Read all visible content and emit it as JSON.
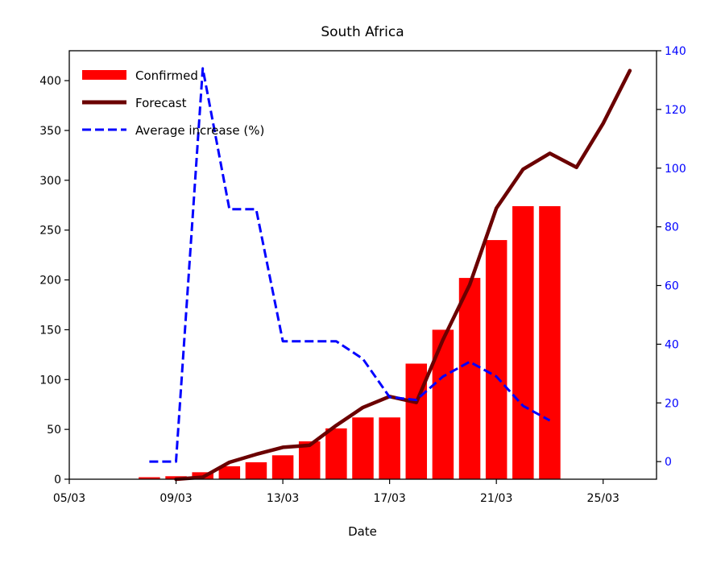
{
  "chart_data": {
    "type": "bar",
    "title": "South Africa",
    "xlabel": "Date",
    "ylabel": "",
    "y2label": "",
    "ylim": [
      0,
      430
    ],
    "y2lim": [
      -6,
      140
    ],
    "x_day_range": [
      5,
      27
    ],
    "x_ticks": [
      {
        "day": 5,
        "label": "05/03"
      },
      {
        "day": 9,
        "label": "09/03"
      },
      {
        "day": 13,
        "label": "13/03"
      },
      {
        "day": 17,
        "label": "17/03"
      },
      {
        "day": 21,
        "label": "21/03"
      },
      {
        "day": 25,
        "label": "25/03"
      }
    ],
    "y_ticks": [
      0,
      50,
      100,
      150,
      200,
      250,
      300,
      350,
      400
    ],
    "y2_ticks": [
      0,
      20,
      40,
      60,
      80,
      100,
      120,
      140
    ],
    "legend": {
      "position": "upper-left",
      "entries": [
        {
          "key": "confirmed",
          "label": "Confirmed"
        },
        {
          "key": "forecast",
          "label": "Forecast"
        },
        {
          "key": "increase",
          "label": "Average increase (%)"
        }
      ]
    },
    "series": [
      {
        "name": "Confirmed",
        "kind": "bar",
        "axis": "left",
        "color": "#ff0000",
        "points": [
          {
            "day": 8,
            "value": 2
          },
          {
            "day": 9,
            "value": 3
          },
          {
            "day": 10,
            "value": 7
          },
          {
            "day": 11,
            "value": 13
          },
          {
            "day": 12,
            "value": 17
          },
          {
            "day": 13,
            "value": 24
          },
          {
            "day": 14,
            "value": 38
          },
          {
            "day": 15,
            "value": 51
          },
          {
            "day": 16,
            "value": 62
          },
          {
            "day": 17,
            "value": 62
          },
          {
            "day": 18,
            "value": 116
          },
          {
            "day": 19,
            "value": 150
          },
          {
            "day": 20,
            "value": 202
          },
          {
            "day": 21,
            "value": 240
          },
          {
            "day": 22,
            "value": 274
          },
          {
            "day": 23,
            "value": 274
          }
        ]
      },
      {
        "name": "Forecast",
        "kind": "line",
        "axis": "left",
        "color": "#6b0000",
        "points": [
          {
            "day": 9,
            "value": 0
          },
          {
            "day": 10,
            "value": 2
          },
          {
            "day": 11,
            "value": 17
          },
          {
            "day": 12,
            "value": 25
          },
          {
            "day": 13,
            "value": 32
          },
          {
            "day": 14,
            "value": 34
          },
          {
            "day": 15,
            "value": 54
          },
          {
            "day": 16,
            "value": 72
          },
          {
            "day": 17,
            "value": 83
          },
          {
            "day": 18,
            "value": 77
          },
          {
            "day": 19,
            "value": 140
          },
          {
            "day": 20,
            "value": 195
          },
          {
            "day": 21,
            "value": 272
          },
          {
            "day": 22,
            "value": 311
          },
          {
            "day": 23,
            "value": 327
          },
          {
            "day": 24,
            "value": 313
          },
          {
            "day": 25,
            "value": 357
          },
          {
            "day": 26,
            "value": 410
          }
        ]
      },
      {
        "name": "Average increase (%)",
        "kind": "line",
        "axis": "right",
        "color": "#0000ff",
        "dashed": true,
        "points": [
          {
            "day": 8,
            "value": 0
          },
          {
            "day": 9,
            "value": 0
          },
          {
            "day": 10,
            "value": 134
          },
          {
            "day": 11,
            "value": 86
          },
          {
            "day": 12,
            "value": 86
          },
          {
            "day": 13,
            "value": 41
          },
          {
            "day": 14,
            "value": 41
          },
          {
            "day": 15,
            "value": 41
          },
          {
            "day": 16,
            "value": 35
          },
          {
            "day": 17,
            "value": 22
          },
          {
            "day": 18,
            "value": 21
          },
          {
            "day": 19,
            "value": 29
          },
          {
            "day": 20,
            "value": 34
          },
          {
            "day": 21,
            "value": 29
          },
          {
            "day": 22,
            "value": 19
          },
          {
            "day": 23,
            "value": 14
          }
        ]
      }
    ]
  }
}
